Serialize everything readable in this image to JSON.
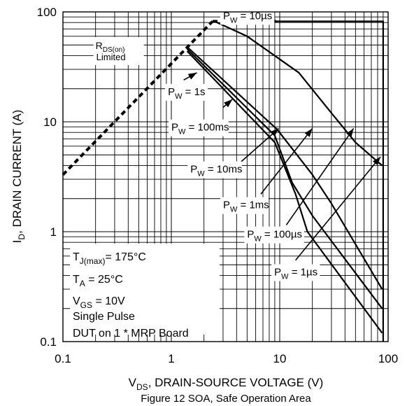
{
  "chart_data": {
    "type": "line",
    "xscale": "log",
    "yscale": "log",
    "xlim": [
      0.1,
      100
    ],
    "ylim": [
      0.1,
      100
    ],
    "grid": true,
    "xlabel": {
      "main": "V",
      "sub": "DS",
      "rest": ", DRAIN-SOURCE VOLTAGE (V)"
    },
    "ylabel": {
      "main": "I",
      "sub": "D",
      "rest": ", DRAIN CURRENT (A)"
    },
    "caption": "Figure 12 SOA, Safe Operation Area",
    "x_ticks": [
      {
        "value": 0.1,
        "label": "0.1"
      },
      {
        "value": 1,
        "label": "1"
      },
      {
        "value": 10,
        "label": "10"
      },
      {
        "value": 100,
        "label": "100"
      }
    ],
    "y_ticks": [
      {
        "value": 0.1,
        "label": "0.1"
      },
      {
        "value": 1,
        "label": "1"
      },
      {
        "value": 10,
        "label": "10"
      },
      {
        "value": 100,
        "label": "100"
      }
    ],
    "rds_limit": {
      "main": "R",
      "sub": "DS(on)",
      "line2": "Limited",
      "x": [
        0.1,
        2.4
      ],
      "y": [
        3.3,
        82
      ]
    },
    "current_limit": {
      "x": [
        2.4,
        9.5
      ],
      "y": [
        82,
        82
      ]
    },
    "series": [
      {
        "label": "P_W = 10µs",
        "x": [
          5,
          90,
          90
        ],
        "y": [
          82,
          82,
          0.1
        ]
      },
      {
        "label": "P_W = 1µs",
        "x": [
          2.5,
          5,
          15,
          30,
          50,
          88
        ],
        "y": [
          82,
          60,
          28,
          12,
          6.5,
          4
        ]
      },
      {
        "label": "P_W = 100µs",
        "x": [
          1.4,
          9.5,
          20,
          30,
          88
        ],
        "y": [
          48,
          8.5,
          3.3,
          1.8,
          0.3
        ]
      },
      {
        "label": "P_W = 1ms",
        "x": [
          1.4,
          9,
          13,
          20,
          88
        ],
        "y": [
          46,
          7.5,
          2.8,
          1.4,
          0.2
        ]
      },
      {
        "label": "P_W = 10ms",
        "x": [
          1.4,
          9,
          14,
          18,
          88
        ],
        "y": [
          44,
          6.5,
          2.2,
          1,
          0.12
        ]
      }
    ],
    "pulse_labels": [
      {
        "main": "P",
        "sub": "W",
        "rest": " = 10µs",
        "text_x": 3.0,
        "text_y": 86,
        "arrow_from": [
          5.2,
          97
        ],
        "arrow_to": [
          3.7,
          104
        ]
      },
      {
        "main": "P",
        "sub": "W",
        "rest": " = 1s",
        "text_x": 0.93,
        "text_y": 17.5,
        "arrow_from": [
          1.3,
          24
        ],
        "arrow_to": [
          1.72,
          28
        ]
      },
      {
        "main": "P",
        "sub": "W",
        "rest": " = 100ms",
        "text_x": 1.0,
        "text_y": 8.3,
        "arrow_from": [
          3.0,
          13.5
        ],
        "arrow_to": [
          3.65,
          16
        ]
      },
      {
        "main": "P",
        "sub": "W",
        "rest": " = 10ms",
        "text_x": 1.5,
        "text_y": 3.45,
        "arrow_from": [
          4.25,
          4.2
        ],
        "arrow_to": [
          9.8,
          8.7
        ]
      },
      {
        "main": "P",
        "sub": "W",
        "rest": " = 1ms",
        "text_x": 3.0,
        "text_y": 1.63,
        "arrow_from": [
          6.7,
          2.2
        ],
        "arrow_to": [
          20,
          8.7
        ]
      },
      {
        "main": "P",
        "sub": "W",
        "rest": " = 100µs",
        "text_x": 5.0,
        "text_y": 0.88,
        "arrow_from": [
          11.5,
          1.15
        ],
        "arrow_to": [
          48,
          8.7
        ]
      },
      {
        "main": "P",
        "sub": "W",
        "rest": " = 1µs",
        "text_x": 8.9,
        "text_y": 0.4,
        "arrow_from": [
          14,
          0.55
        ],
        "arrow_to": [
          85,
          4.8
        ]
      }
    ],
    "conditions": [
      {
        "main": "T",
        "sub": "J(max)",
        "rest": "= 175°C"
      },
      {
        "main": "T",
        "sub": "A",
        "rest": " = 25°C"
      },
      {
        "main": "V",
        "sub": "GS",
        "rest": " = 10V"
      },
      {
        "main": "Single Pulse",
        "sub": "",
        "rest": ""
      },
      {
        "main": "DUT on 1 * MRP Board",
        "sub": "",
        "rest": ""
      }
    ]
  }
}
